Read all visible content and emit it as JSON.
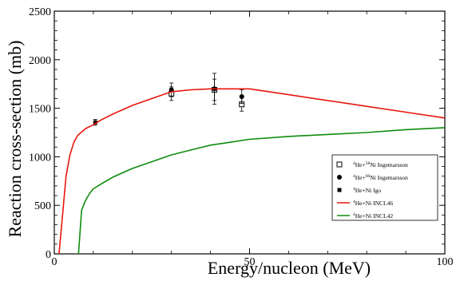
{
  "chart_data": {
    "type": "line",
    "title": "",
    "xlabel": "Energy/nucleon  (MeV)",
    "ylabel": "Reaction cross-section (mb)",
    "xlim": [
      0,
      100
    ],
    "ylim": [
      0,
      2500
    ],
    "grid": false,
    "legend_position": "bottom-right",
    "x_ticks": [
      0,
      50,
      100
    ],
    "x_tick_labels": [
      "0",
      "50",
      "100"
    ],
    "minor_x_ticks": [
      10,
      20,
      30,
      40,
      60,
      70,
      80,
      90
    ],
    "y_ticks": [
      0,
      500,
      1000,
      1500,
      2000,
      2500
    ],
    "y_tick_labels": [
      "0",
      "500",
      "1000",
      "1500",
      "2000",
      "2500"
    ],
    "minor_y_ticks": [
      100,
      200,
      300,
      400,
      600,
      700,
      800,
      900,
      1100,
      1200,
      1300,
      1400,
      1600,
      1700,
      1800,
      1900,
      2100,
      2200,
      2300,
      2400
    ],
    "series": [
      {
        "name": "⁴He+⁵⁸Ni Ingemarsson",
        "legend_mass": "4",
        "legend_rest": "He+",
        "legend_target": "58",
        "legend_tail": "Ni Ingemarsson",
        "kind": "points",
        "marker": "open-square",
        "color": "#000000",
        "x": [
          30,
          41,
          48
        ],
        "y": [
          1650,
          1690,
          1540
        ],
        "yerr": [
          70,
          110,
          70
        ]
      },
      {
        "name": "⁴He+⁶⁰Ni Ingemarsson",
        "legend_mass": "4",
        "legend_rest": "He+",
        "legend_target": "60",
        "legend_tail": "Ni Ingemarsson",
        "kind": "points",
        "marker": "filled-circle",
        "color": "#000000",
        "x": [
          30,
          41,
          48
        ],
        "y": [
          1690,
          1700,
          1620
        ],
        "yerr": [
          70,
          160,
          70
        ]
      },
      {
        "name": "⁴He+Ni Igo",
        "legend_mass": "4",
        "legend_rest": "He+Ni Igo",
        "kind": "points",
        "marker": "filled-square",
        "color": "#000000",
        "x": [
          10.5
        ],
        "y": [
          1355
        ],
        "yerr": [
          30
        ]
      },
      {
        "name": "⁴He+Ni INCL46",
        "legend_mass": "4",
        "legend_rest": "He+Ni INCL46",
        "kind": "line",
        "color": "#e8160c",
        "x": [
          1.2,
          2,
          3,
          4,
          5,
          6,
          8,
          10,
          12,
          15,
          20,
          25,
          30,
          35,
          40,
          45,
          50,
          60,
          70,
          80,
          90,
          100
        ],
        "y": [
          0,
          350,
          800,
          1020,
          1150,
          1220,
          1290,
          1330,
          1380,
          1440,
          1530,
          1600,
          1670,
          1690,
          1700,
          1700,
          1700,
          1640,
          1580,
          1520,
          1460,
          1400
        ]
      },
      {
        "name": "⁴He+Ni INCL42",
        "legend_mass": "4",
        "legend_rest": "He+Ni INCL42",
        "kind": "line",
        "color": "#0d8c0d",
        "x": [
          6.2,
          7,
          8,
          9,
          10,
          12,
          15,
          20,
          25,
          30,
          35,
          40,
          45,
          50,
          60,
          70,
          80,
          90,
          100
        ],
        "y": [
          0,
          450,
          550,
          620,
          670,
          720,
          790,
          880,
          950,
          1020,
          1070,
          1120,
          1150,
          1180,
          1210,
          1230,
          1250,
          1280,
          1300
        ]
      }
    ]
  }
}
